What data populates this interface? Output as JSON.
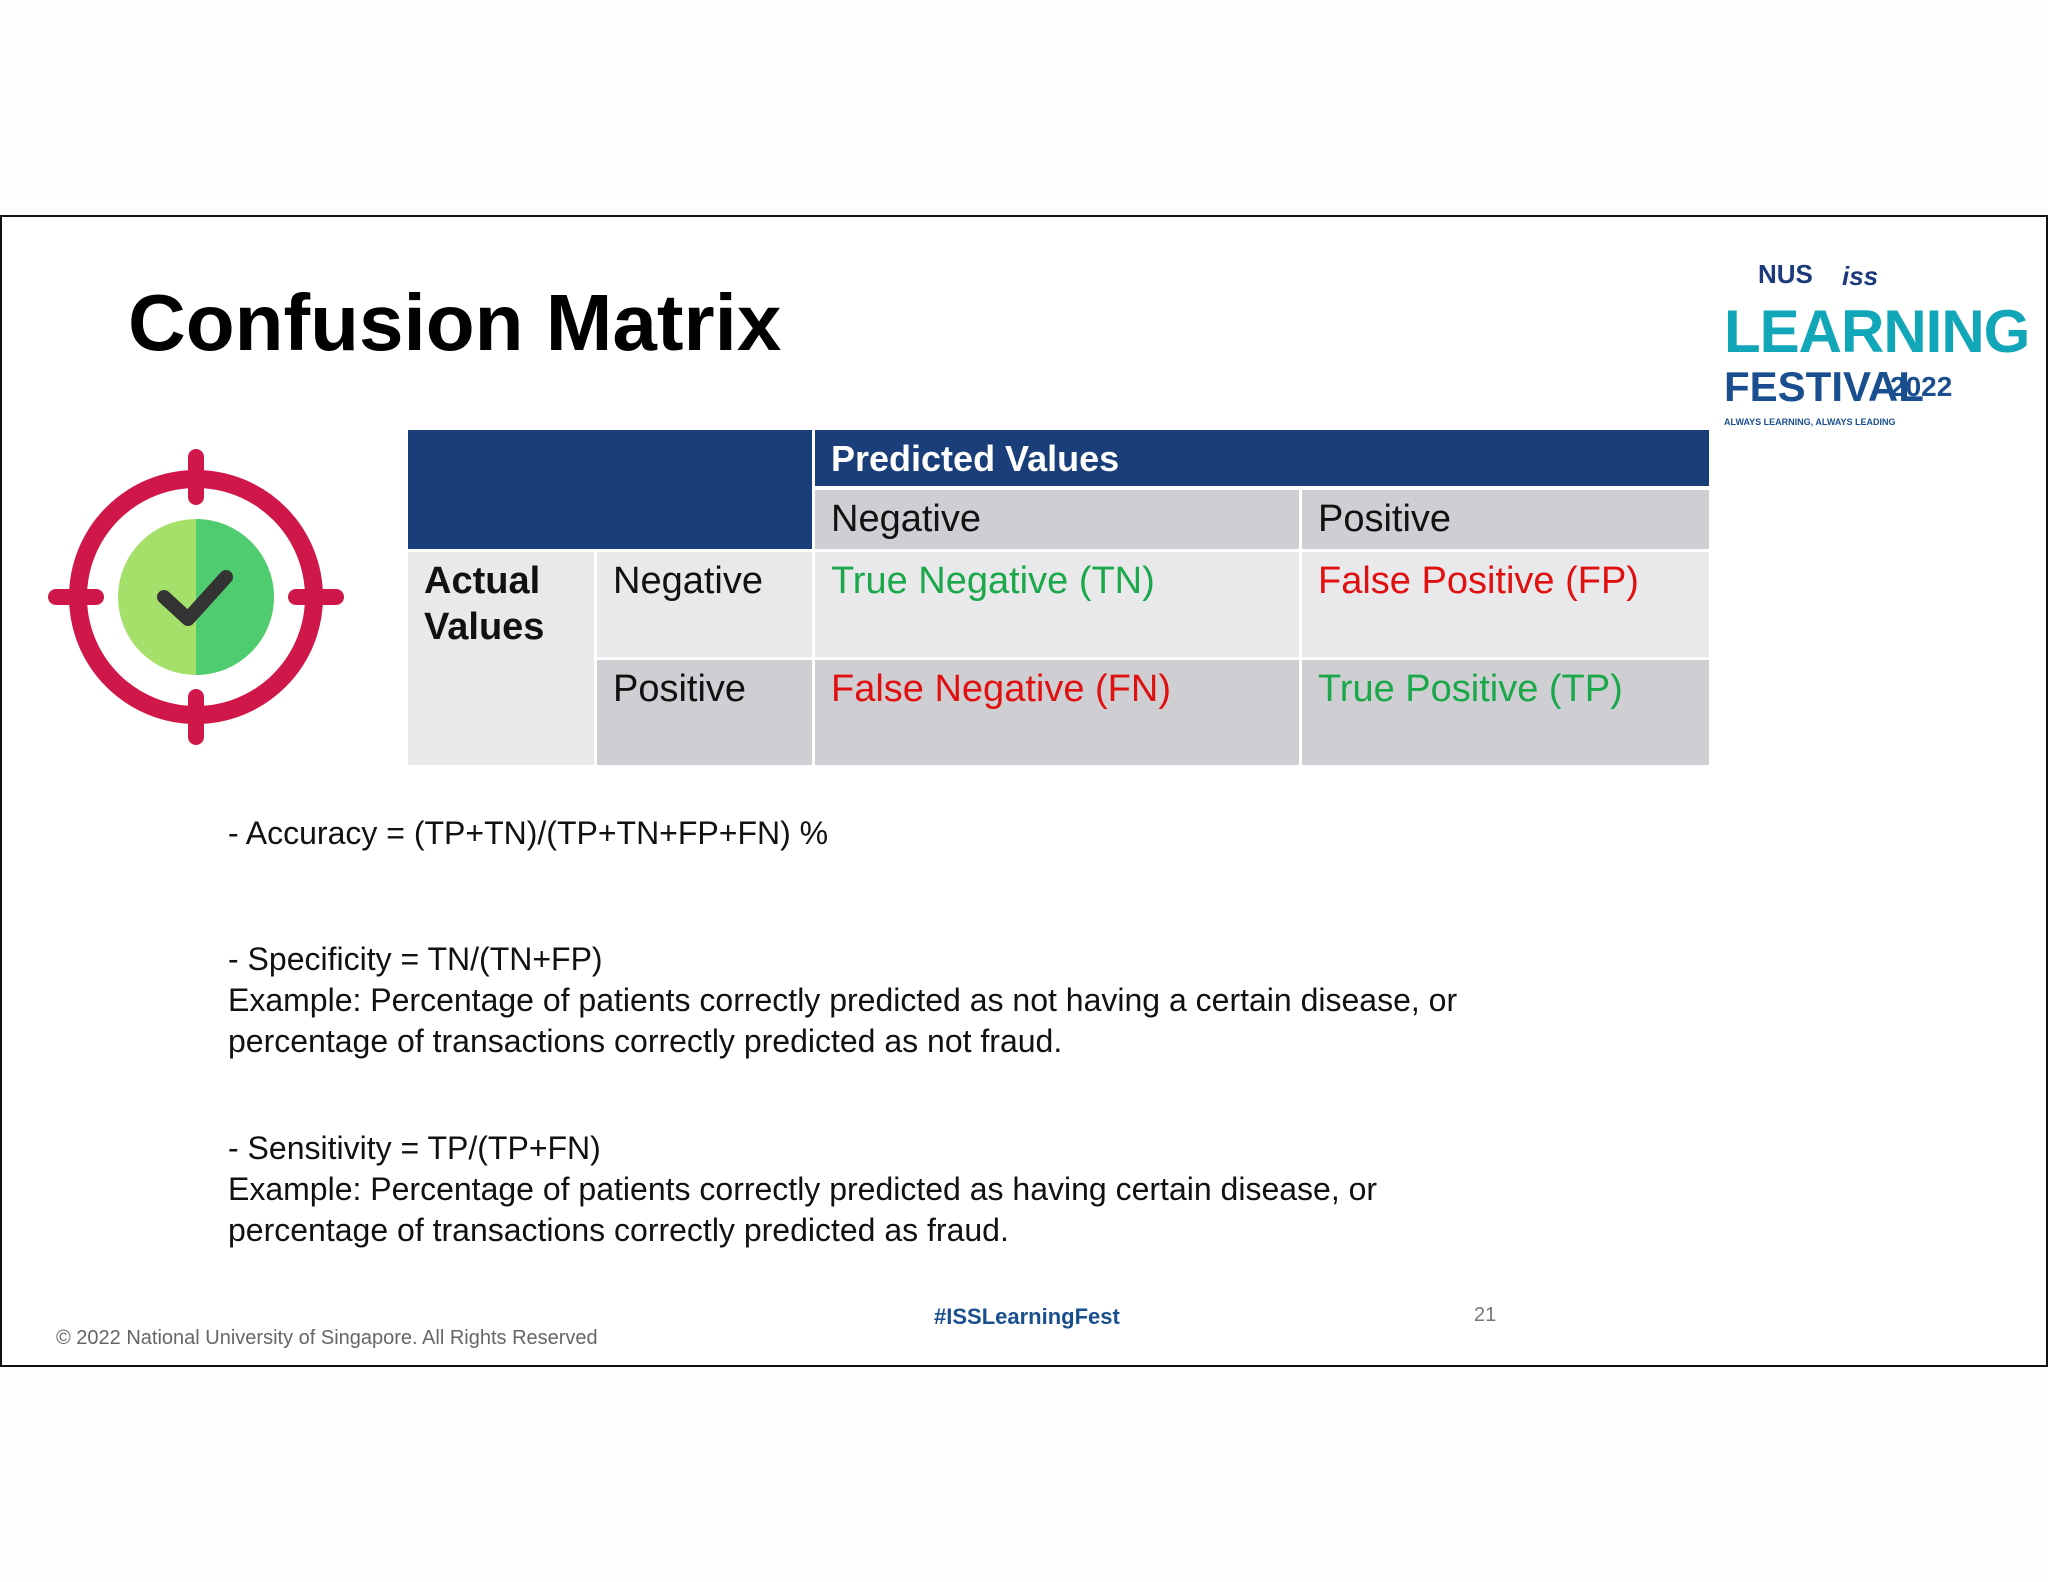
{
  "header": {
    "title": "Confusion Matrix"
  },
  "logo": {
    "nus": "NUS",
    "iss": "iss",
    "line1": "LEARNING",
    "line2": "FESTIVAL",
    "year": "2022",
    "tagline": "ALWAYS LEARNING, ALWAYS LEADING"
  },
  "table": {
    "predicted_header": "Predicted Values",
    "predicted_negative": "Negative",
    "predicted_positive": "Positive",
    "actual_header": "Actual Values",
    "rows": [
      [
        "Negative",
        "True Negative (TN)",
        "False Positive (FP)"
      ],
      [
        "Positive",
        "False Negative (FN)",
        "True Positive (TP)"
      ]
    ]
  },
  "notes": {
    "accuracy": "- Accuracy = (TP+TN)/(TP+TN+FP+FN) %",
    "specificity": [
      "- Specificity = TN/(TN+FP)",
      "Example: Percentage of patients correctly predicted as not having a certain disease, or",
      "percentage of transactions correctly predicted as not fraud."
    ],
    "sensitivity": [
      "- Sensitivity = TP/(TP+FN)",
      "Example: Percentage of patients correctly predicted as having certain disease, or",
      "percentage of transactions correctly predicted as fraud."
    ]
  },
  "footer": {
    "copyright": "© 2022 National University of Singapore. All Rights Reserved",
    "hashtag": "#ISSLearningFest",
    "page": "21"
  }
}
